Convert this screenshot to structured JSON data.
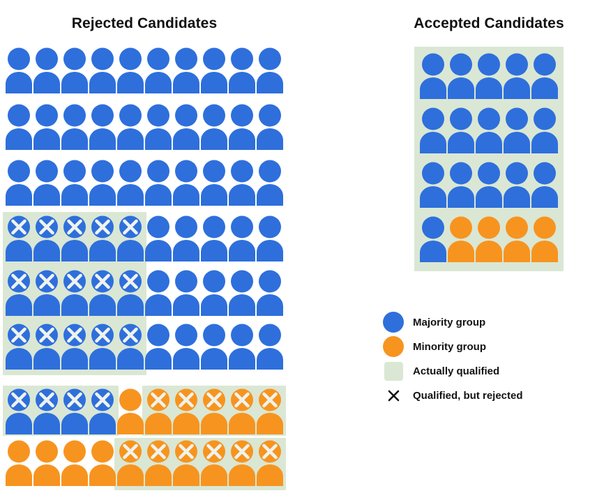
{
  "colors": {
    "majority": "#2E6FDC",
    "minority": "#F7941F",
    "qualified_bg": "#DAE7D4",
    "figure_x_mark": "#EFF3EC",
    "legend_x": "#111111",
    "text": "#111111"
  },
  "grids": {
    "rejected": {
      "title": "Rejected Candidates",
      "rows": [
        "MMMMMMMMMM",
        "MMMMMMMMMM",
        "MMMMMMMMMM",
        "mmmmmMMMMM",
        "mmmmmMMMMM",
        "mmmmmMMMMM",
        "mmmmNnnnnn",
        "NNNNnnnnnn"
      ],
      "qualified_regions": [
        {
          "rows": [
            4,
            6
          ],
          "cols": [
            1,
            5
          ]
        },
        {
          "rows": [
            7,
            7
          ],
          "cols": [
            1,
            4
          ]
        },
        {
          "rows": [
            7,
            7
          ],
          "cols": [
            6,
            10
          ]
        },
        {
          "rows": [
            8,
            8
          ],
          "cols": [
            5,
            10
          ]
        }
      ]
    },
    "accepted": {
      "title": "Accepted Candidates",
      "rows": [
        "MMMMM",
        "MMMMM",
        "MMMMM",
        "MNNNN"
      ],
      "qualified_regions": [
        {
          "rows": [
            1,
            4
          ],
          "cols": [
            1,
            5
          ]
        }
      ]
    }
  },
  "figure_codes": {
    "M": "majority, not marked",
    "m": "majority, qualified-but-rejected (x mark)",
    "N": "minority, not marked",
    "n": "minority, qualified-but-rejected (x mark)"
  },
  "legend": [
    {
      "swatch": "majority-circle",
      "label": "Majority group"
    },
    {
      "swatch": "minority-circle",
      "label": "Minority group"
    },
    {
      "swatch": "qualified-square",
      "label": "Actually qualified"
    },
    {
      "swatch": "x-mark",
      "label": "Qualified, but rejected"
    }
  ]
}
